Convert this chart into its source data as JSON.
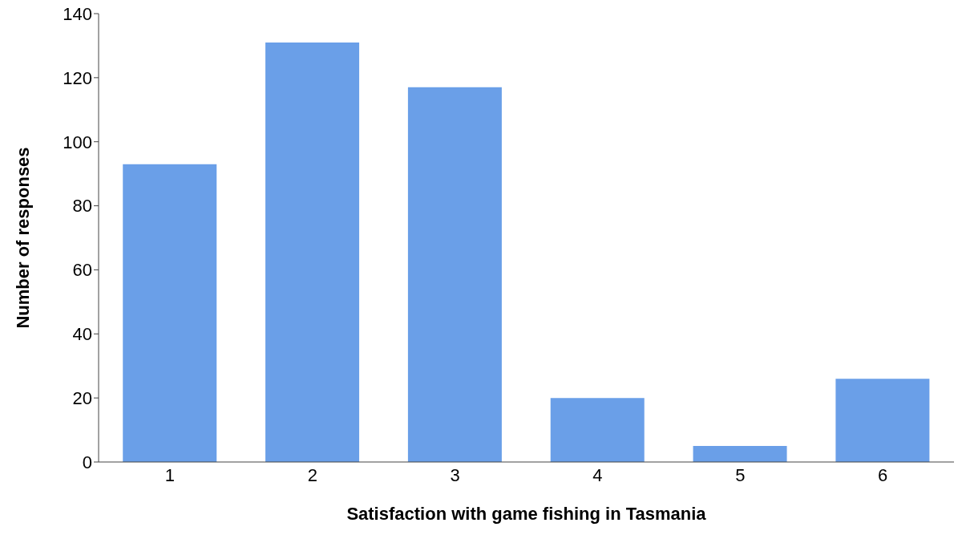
{
  "chart_data": {
    "type": "bar",
    "xlabel": "Satisfaction with game fishing in Tasmania",
    "ylabel": "Number of responses",
    "categories": [
      "1",
      "2",
      "3",
      "4",
      "5",
      "6"
    ],
    "values": [
      93,
      131,
      117,
      20,
      5,
      26
    ],
    "color": "#6a9fe8",
    "ylim": [
      0,
      140
    ],
    "yticks": [
      0,
      20,
      40,
      60,
      80,
      100,
      120,
      140
    ],
    "grid": false,
    "legend": false
  }
}
